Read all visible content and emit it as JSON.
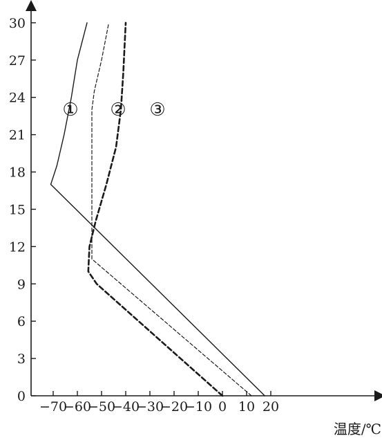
{
  "chart_data": {
    "type": "line",
    "title": "",
    "xlabel": "温度/℃",
    "ylabel": "",
    "xlim": [
      -77,
      23
    ],
    "ylim": [
      0,
      30.5
    ],
    "x_ticks": [
      -70,
      -60,
      -50,
      -40,
      -30,
      -20,
      -10,
      0,
      10,
      20
    ],
    "x_tick_labels": [
      "−70",
      "−60",
      "−50",
      "−40",
      "−30",
      "−20",
      "−10",
      "0",
      "10",
      "20"
    ],
    "y_ticks": [
      0,
      3,
      6,
      9,
      12,
      15,
      18,
      21,
      24,
      27,
      30
    ],
    "y_tick_labels": [
      "0",
      "3",
      "6",
      "9",
      "12",
      "15",
      "18",
      "21",
      "24",
      "27",
      "30"
    ],
    "grid": false,
    "series": [
      {
        "name": "①",
        "style": "solid",
        "color": "#1a1a1a",
        "points": [
          [
            17.5,
            0
          ],
          [
            -71,
            17
          ],
          [
            -68.5,
            18.5
          ],
          [
            -65.5,
            21
          ],
          [
            -62.5,
            24
          ],
          [
            -60,
            27
          ],
          [
            -56,
            30
          ]
        ]
      },
      {
        "name": "②",
        "style": "thin-dashed",
        "color": "#1a1a1a",
        "points": [
          [
            12,
            0
          ],
          [
            -54,
            11
          ],
          [
            -54,
            23
          ],
          [
            -53,
            24.5
          ],
          [
            -50,
            27
          ],
          [
            -47,
            30
          ]
        ]
      },
      {
        "name": "③",
        "style": "thick-dashed",
        "color": "#1a1a1a",
        "points": [
          [
            0,
            0
          ],
          [
            -52,
            9
          ],
          [
            -55.5,
            10
          ],
          [
            -55,
            12
          ],
          [
            -52.5,
            14
          ],
          [
            -48,
            17
          ],
          [
            -44,
            20
          ],
          [
            -42,
            23
          ],
          [
            -41,
            26
          ],
          [
            -40,
            30
          ]
        ]
      }
    ]
  }
}
